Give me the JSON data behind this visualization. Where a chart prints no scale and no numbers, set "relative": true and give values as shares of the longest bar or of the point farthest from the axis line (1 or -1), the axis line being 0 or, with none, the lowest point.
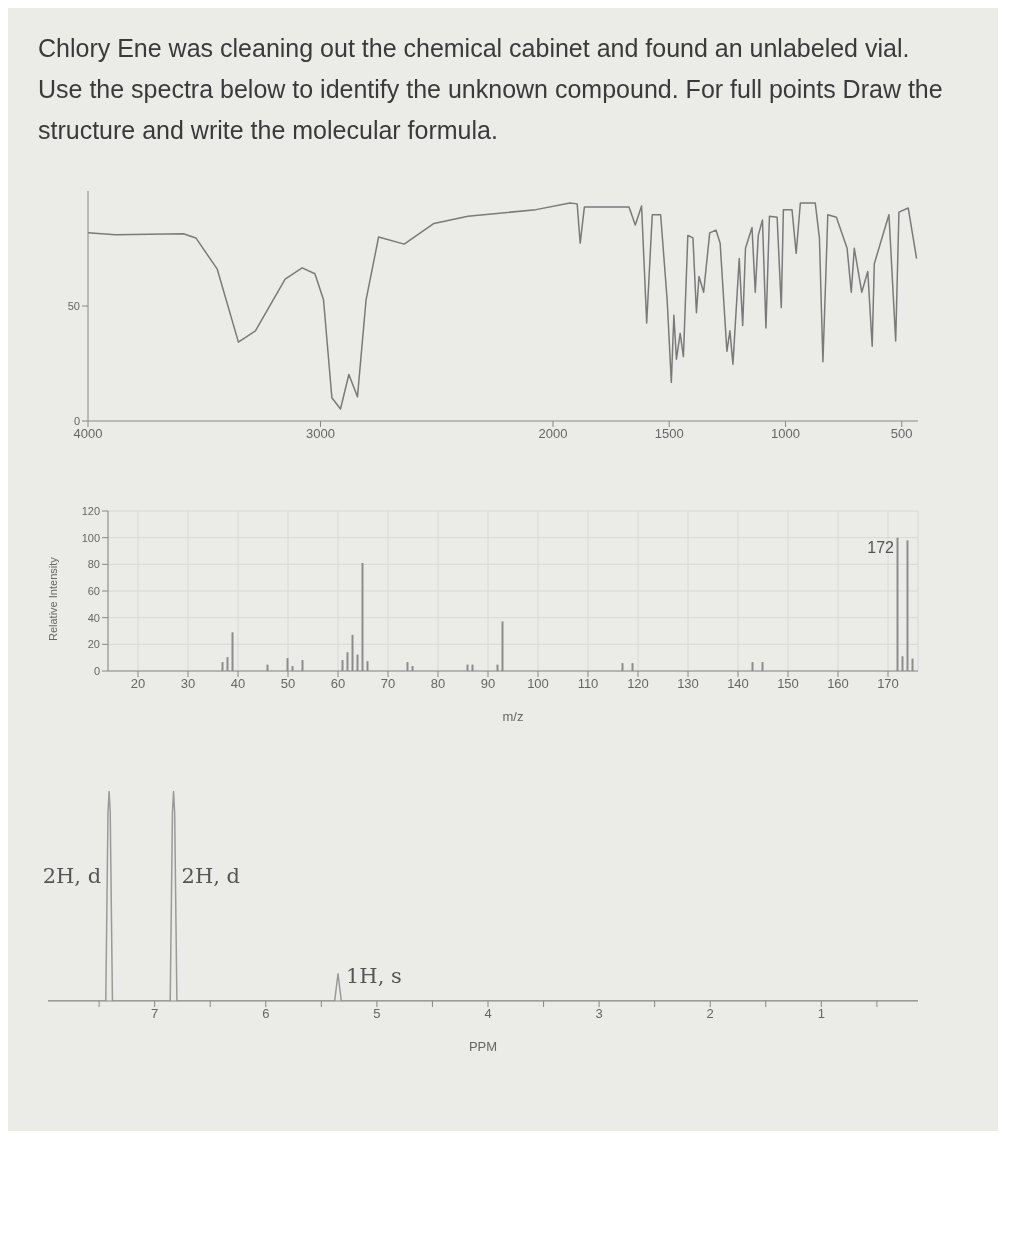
{
  "chart_data": [
    {
      "type": "line",
      "title": "Chlory Ene was cleaning out the chemical cabinet and found an unlabeled vial. Use the spectra below to identify the unknown compound.  For full points Draw the structure and write the molecular formula.",
      "x": [
        4000,
        3883,
        3590,
        3536,
        3444,
        3353,
        3280,
        3152,
        3079,
        3024,
        2987,
        2951,
        2914,
        2878,
        2841,
        2804,
        2750,
        2640,
        2512,
        2366,
        2073,
        1927,
        1896,
        1883,
        1865,
        1746,
        1673,
        1646,
        1619,
        1597,
        1573,
        1537,
        1509,
        1491,
        1480,
        1469,
        1453,
        1439,
        1420,
        1398,
        1383,
        1372,
        1352,
        1326,
        1299,
        1281,
        1252,
        1239,
        1226,
        1199,
        1184,
        1172,
        1144,
        1130,
        1117,
        1099,
        1084,
        1069,
        1036,
        1018,
        1009,
        972,
        954,
        936,
        872,
        854,
        839,
        827,
        818,
        781,
        735,
        717,
        704,
        672,
        646,
        627,
        618,
        555,
        526,
        512,
        472,
        436
      ],
      "values": [
        81.8,
        81,
        81.4,
        79.6,
        66,
        34.3,
        39.2,
        61.7,
        66.6,
        64,
        52.7,
        10.1,
        5.2,
        20.2,
        10.5,
        52.7,
        80,
        76.9,
        85.9,
        89,
        91.9,
        94.8,
        94.4,
        77.3,
        93,
        93,
        93,
        85.2,
        93.5,
        42.6,
        89.7,
        89.7,
        52.7,
        16.8,
        46,
        26.9,
        38.1,
        28,
        80.7,
        79.6,
        47.1,
        62.8,
        56,
        81.8,
        83,
        77.3,
        30.3,
        39.2,
        24.7,
        70.6,
        41.5,
        75.1,
        84.1,
        56,
        80.7,
        87.4,
        40.4,
        89,
        88.6,
        49.3,
        91.9,
        91.9,
        72.9,
        94.8,
        94.8,
        79.6,
        25.8,
        61.7,
        89.7,
        88.6,
        75.1,
        56,
        75.1,
        56,
        65,
        32.5,
        68.4,
        89.7,
        34.8,
        90.8,
        92.6,
        70.6
      ],
      "color": "#7a7a7a",
      "xlim": [
        4000,
        430
      ],
      "xticks": [
        4000,
        3000,
        2000,
        1500,
        1000,
        500
      ],
      "ylim": [
        0,
        100
      ],
      "yticks": [
        0,
        50
      ],
      "marker": "none"
    },
    {
      "type": "bar",
      "x": [
        37,
        38,
        39,
        46,
        50,
        51,
        53,
        61,
        62,
        63,
        64,
        65,
        66,
        74,
        75,
        86,
        87,
        92,
        93,
        117,
        119,
        143,
        145,
        172,
        173,
        174,
        175
      ],
      "values": [
        6.7,
        10.4,
        29,
        4.8,
        9.7,
        3.7,
        8.2,
        8.2,
        14.1,
        27.1,
        12.3,
        81,
        7.4,
        6.7,
        3.7,
        4.8,
        4.8,
        4.8,
        37.2,
        5.9,
        5.9,
        6.7,
        6.7,
        100,
        11,
        98,
        9.3
      ],
      "annotations": [
        {
          "text": "172",
          "x": 172,
          "y": 100
        }
      ],
      "color": "#8c8c8c",
      "xlim": [
        14,
        176
      ],
      "xticks": [
        20,
        30,
        40,
        50,
        60,
        70,
        80,
        90,
        100,
        110,
        120,
        130,
        140,
        150,
        160,
        170
      ],
      "ylim": [
        0,
        120
      ],
      "yticks": [
        0,
        20,
        40,
        60,
        80,
        100,
        120
      ],
      "xlabel": "m/z",
      "ylabel": "Relative Intensity",
      "grid": true
    },
    {
      "type": "line",
      "relative": true,
      "x": [
        7.96,
        7.44,
        7.42,
        7.41,
        7.4,
        7.38,
        6.86,
        6.84,
        6.83,
        6.82,
        6.8,
        5.38,
        5.35,
        5.32,
        0.13
      ],
      "values": [
        0,
        0,
        0.9,
        1,
        0.9,
        0,
        0,
        0.9,
        1,
        0.9,
        0,
        0,
        0.13,
        0,
        0
      ],
      "color": "#9a9a9a",
      "xlim": [
        7.96,
        0.13
      ],
      "xticks": [
        {
          "value": 7.5,
          "label": null
        },
        7,
        {
          "value": 6.5,
          "label": null
        },
        6,
        {
          "value": 5.5,
          "label": null
        },
        5,
        {
          "value": 4.5,
          "label": null
        },
        4,
        {
          "value": 3.5,
          "label": null
        },
        3,
        {
          "value": 2.5,
          "label": null
        },
        2,
        {
          "value": 1.5,
          "label": null
        },
        1,
        {
          "value": 0.5,
          "label": null
        }
      ],
      "xlabel": "PPM",
      "tick_labels": "x",
      "marker": "none",
      "annotations": [
        {
          "text": "2H, d",
          "x": 7.41,
          "y": 0.6
        },
        {
          "text": "2H, d",
          "x": 6.83,
          "y": 0.6
        },
        {
          "text": "1H, s",
          "x": 5.35,
          "y": 0.12
        }
      ]
    }
  ]
}
